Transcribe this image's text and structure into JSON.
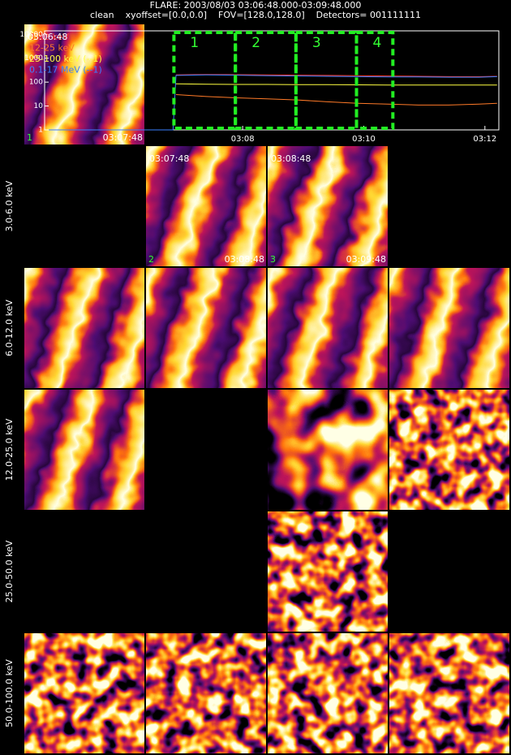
{
  "header": {
    "title": "FLARE: 2003/08/03 03:06:48.000-03:09:48.000",
    "subtitle": "clean    xyoffset=[0.0,0.0]    FOV=[128.0,128.0]    Detectors= 001111111"
  },
  "row_labels": [
    "3.0-6.0 keV",
    "6.0-12.0 keV",
    "12.0-25.0 keV",
    "25.0-50.0 keV",
    "50.0-100.0 keV"
  ],
  "tile_labels": [
    {
      "start": "03:06:48",
      "number": "1",
      "end": "03:07:48"
    },
    {
      "start": "03:07:48",
      "number": "2",
      "end": "03:08:48"
    },
    {
      "start": "03:08:48",
      "number": "3",
      "end": "03:09:48"
    }
  ],
  "lightcurve": {
    "type": "line",
    "log_y": true,
    "x": [
      4.8,
      6.85,
      6.9,
      7.4,
      7.9,
      8.4,
      8.9,
      9.4,
      9.9,
      10.4,
      10.9,
      11.4,
      11.9,
      12.2
    ],
    "xlim": [
      4.73,
      12.23
    ],
    "xticks": [
      {
        "value": 8,
        "label": "03:08"
      },
      {
        "value": 10,
        "label": "03:10"
      },
      {
        "value": 12,
        "label": "03:12"
      }
    ],
    "ylim": [
      1,
      14000
    ],
    "yticks": [
      1,
      10,
      100,
      1000,
      10000
    ],
    "series": [
      {
        "name": "3-12 keV",
        "color": "#ff3a2a",
        "values": [
          null,
          null,
          200,
          210,
          205,
          200,
          195,
          190,
          185,
          180,
          175,
          170,
          168,
          175
        ]
      },
      {
        "name": "12-25 keV",
        "color": "#ff7a28",
        "values": [
          null,
          null,
          30,
          25,
          22,
          20,
          18,
          15,
          13,
          12,
          11,
          11,
          12,
          13
        ]
      },
      {
        "name": "25-100 keV (--1)",
        "color": "#ffff40",
        "values": [
          null,
          null,
          85,
          82,
          80,
          80,
          78,
          78,
          77,
          76,
          75,
          75,
          75,
          75
        ]
      },
      {
        "name": "0.1-17 MeV (--1)",
        "color": "#3a7fff",
        "values": [
          1,
          1,
          190,
          200,
          195,
          185,
          180,
          175,
          170,
          165,
          165,
          160,
          160,
          170
        ]
      }
    ],
    "intervals": [
      {
        "label": "1",
        "start": 6.865,
        "end": 7.88
      },
      {
        "label": "2",
        "start": 7.88,
        "end": 8.88
      },
      {
        "label": "3",
        "start": 8.88,
        "end": 9.88
      },
      {
        "label": "4",
        "start": 9.88,
        "end": 10.48
      }
    ]
  }
}
